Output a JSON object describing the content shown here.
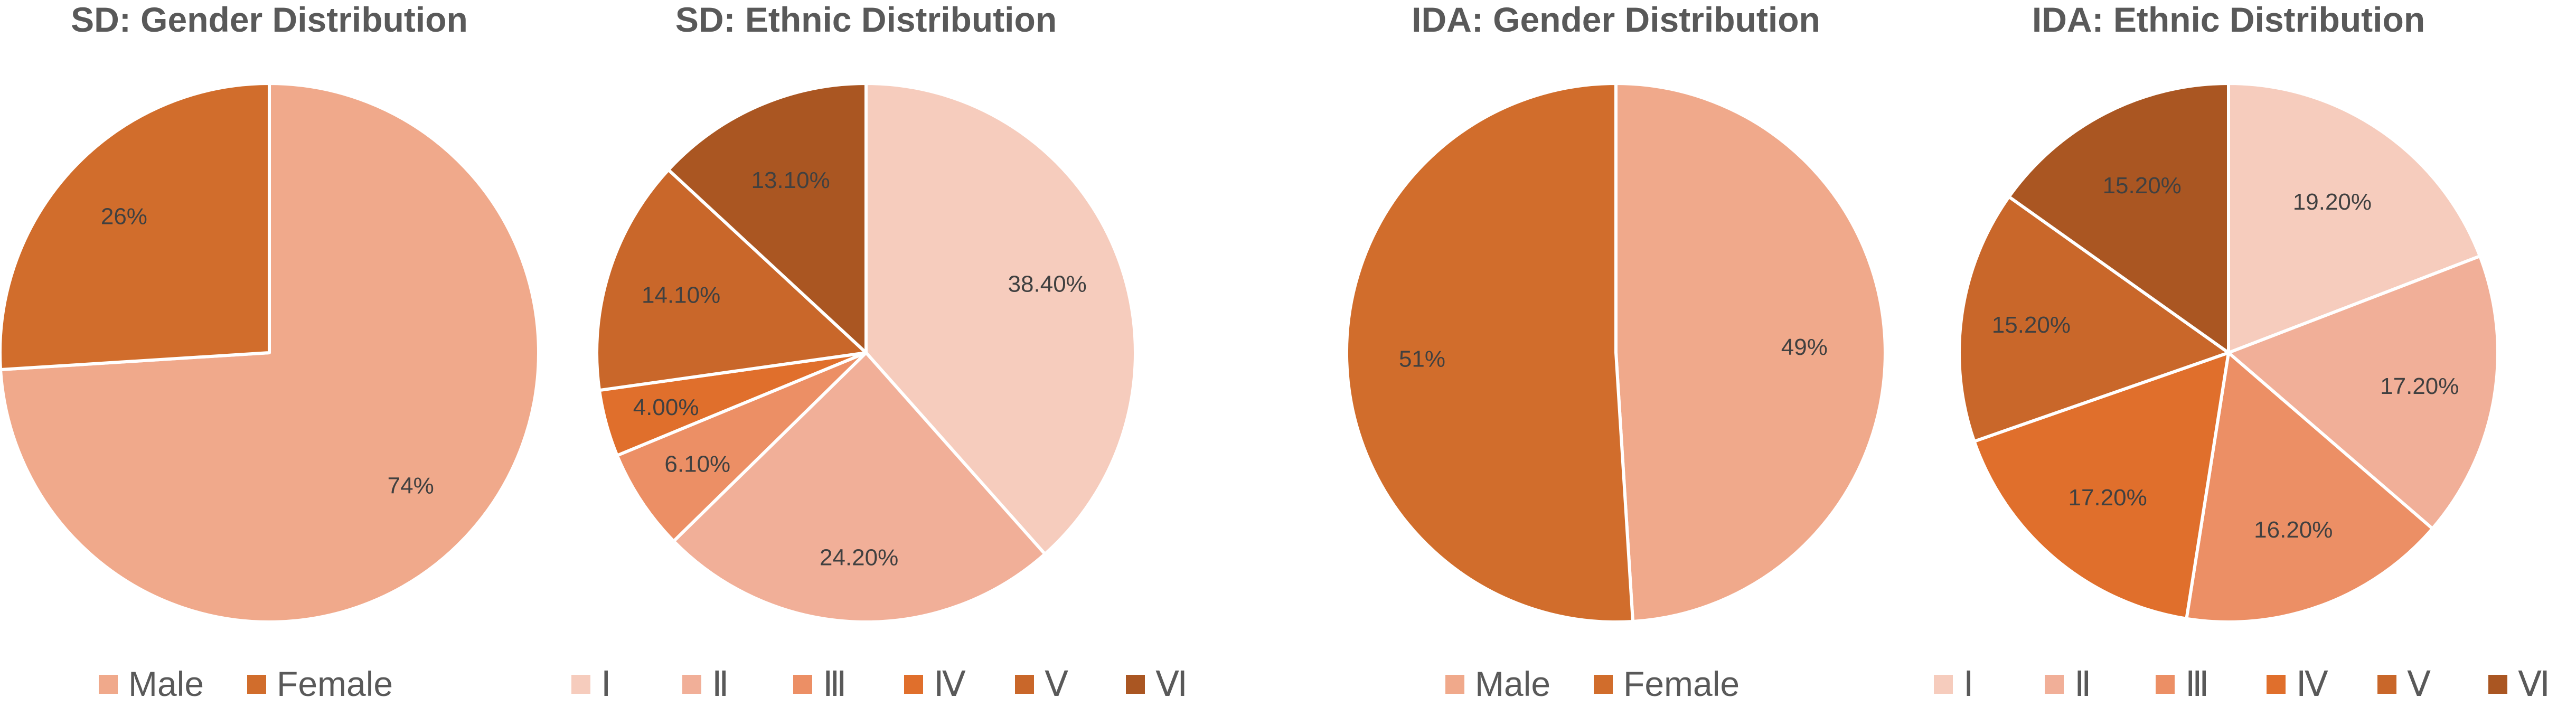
{
  "chart_data": [
    {
      "type": "pie",
      "title": "SD: Gender Distribution",
      "categories": [
        "Male",
        "Female"
      ],
      "values": [
        74,
        26
      ],
      "data_labels": [
        "74%",
        "26%"
      ],
      "colors": [
        "#F0A98B",
        "#D16D2C"
      ],
      "legend": "bottom",
      "start_angle": 0,
      "direction": "clockwise"
    },
    {
      "type": "pie",
      "title": "SD: Ethnic Distribution",
      "categories": [
        "Ⅰ",
        "Ⅱ",
        "Ⅲ",
        "Ⅳ",
        "Ⅴ",
        "Ⅵ"
      ],
      "values": [
        38.4,
        24.2,
        6.1,
        4.0,
        14.1,
        13.1
      ],
      "data_labels": [
        "38.40%",
        "24.20%",
        "6.10%",
        "4.00%",
        "14.10%",
        "13.10%"
      ],
      "colors": [
        "#F6CCBD",
        "#F1AF98",
        "#EC8F65",
        "#E06F2C",
        "#C9672A",
        "#AA5622"
      ],
      "legend": "bottom",
      "start_angle": 0,
      "direction": "clockwise"
    },
    {
      "type": "pie",
      "title": "IDA: Gender Distribution",
      "categories": [
        "Male",
        "Female"
      ],
      "values": [
        49,
        51
      ],
      "data_labels": [
        "49%",
        "51%"
      ],
      "colors": [
        "#F0A98B",
        "#D16D2C"
      ],
      "legend": "bottom",
      "start_angle": 0,
      "direction": "clockwise"
    },
    {
      "type": "pie",
      "title": "IDA: Ethnic Distribution",
      "categories": [
        "Ⅰ",
        "Ⅱ",
        "Ⅲ",
        "Ⅳ",
        "Ⅴ",
        "Ⅵ"
      ],
      "values": [
        19.2,
        17.2,
        16.2,
        17.2,
        15.2,
        15.2
      ],
      "data_labels": [
        "19.20%",
        "17.20%",
        "16.20%",
        "17.20%",
        "15.20%",
        "15.20%"
      ],
      "colors": [
        "#F6CCBD",
        "#F1AF98",
        "#EC8F65",
        "#E06F2C",
        "#C9672A",
        "#AA5622"
      ],
      "legend": "bottom",
      "start_angle": 0,
      "direction": "clockwise"
    }
  ]
}
